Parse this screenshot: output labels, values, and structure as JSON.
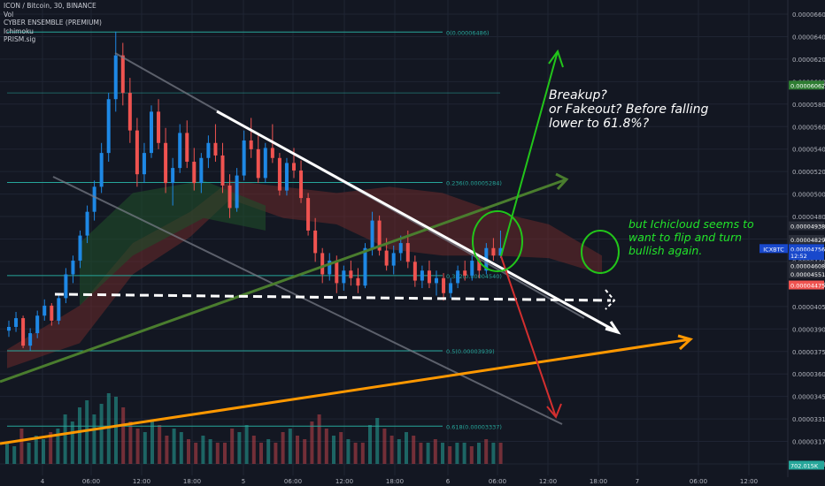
{
  "legend": {
    "symbol_line": "ICON / Bitcoin, 30, BINANCE",
    "indicators": [
      "Vol",
      "CYBER ENSEMBLE (PREMIUM)",
      "Ichimoku",
      "PRISM.sig"
    ]
  },
  "annotations": {
    "breakup_text": "Breakup?\nor Fakeout? Before falling\nlower to 61.8%?",
    "ichicloud_text": "but Ichicloud seems to want to flip and turn bullish again."
  },
  "colors": {
    "background": "#131722",
    "grid": "#1f2433",
    "candle_up": "#1e88e5",
    "candle_down": "#ef5350",
    "fib_line": "#26a69a",
    "white_trend": "#ffffff",
    "green_arrow": "#22c51a",
    "red_arrow": "#d32f2f",
    "orange_trend": "#ff9800",
    "olive_trend": "#4a7d2e",
    "gray_channel": "#7b7f8a",
    "cloud_red": "#6b2a2a",
    "cloud_green": "#1f4d2a"
  },
  "chart_data": {
    "type": "candlestick",
    "symbol": "ICXBTC",
    "x_tick_labels": [
      "4",
      "06:00",
      "12:00",
      "18:00",
      "5",
      "06:00",
      "12:00",
      "18:00",
      "6",
      "06:00",
      "12:00",
      "18:00",
      "7",
      "06:00",
      "12:00"
    ],
    "y_tick_labels": [
      "0.00006600",
      "0.00006400",
      "0.00006200",
      "0.00006000",
      "0.00005800",
      "0.00005600",
      "0.00005400",
      "0.00005200",
      "0.00005000",
      "0.00004800",
      "0.00004600",
      "0.00004400",
      "0.00004200",
      "0.00004050",
      "0.00003900",
      "0.00003750",
      "0.00003600",
      "0.00003450",
      "0.00003310",
      "0.00003170",
      "0.00003030"
    ],
    "price_badges": [
      {
        "label": "0.00006062",
        "value": 6.062e-05,
        "color": "#2e7d32"
      },
      {
        "label": "0.00004938",
        "value": 4.938e-05,
        "color": "#2a2e39"
      },
      {
        "label": "0.00004829",
        "value": 4.829e-05,
        "color": "#2a2e39"
      },
      {
        "label": "ICXBTC",
        "value": 4.756e-05,
        "color": "#1848cc"
      },
      {
        "label": "0.00004756",
        "value": 4.756e-05,
        "color": "#1848cc"
      },
      {
        "label": "12:52",
        "value": 4.7e-05,
        "color": "#1848cc"
      },
      {
        "label": "0.00004608",
        "value": 4.62e-05,
        "color": "#2a2e39"
      },
      {
        "label": "0.00004551",
        "value": 4.555e-05,
        "color": "#2a2e39"
      },
      {
        "label": "0.00004475",
        "value": 4.465e-05,
        "color": "#ef5350"
      },
      {
        "label": "702.015K",
        "value": 3.025e-05,
        "color": "#26a69a"
      }
    ],
    "fib_levels": [
      {
        "label": "0(0.00006486)",
        "value": 6.486e-05
      },
      {
        "label": "0.236(0.00005284)",
        "value": 5.284e-05
      },
      {
        "label": "0.382(0.00004540)",
        "value": 4.54e-05
      },
      {
        "label": "0.5(0.00003939)",
        "value": 3.939e-05
      },
      {
        "label": "0.618(0.00003337)",
        "value": 3.337e-05
      }
    ],
    "candles": [
      [
        4.1e-05,
        4.18e-05,
        4.05e-05,
        4.13e-05
      ],
      [
        4.13e-05,
        4.25e-05,
        4.09e-05,
        4.2e-05
      ],
      [
        4.2e-05,
        4.22e-05,
        3.96e-05,
        3.98e-05
      ],
      [
        3.98e-05,
        4.12e-05,
        3.94e-05,
        4.08e-05
      ],
      [
        4.08e-05,
        4.26e-05,
        4.04e-05,
        4.22e-05
      ],
      [
        4.22e-05,
        4.35e-05,
        4.18e-05,
        4.3e-05
      ],
      [
        4.3e-05,
        4.32e-05,
        4.14e-05,
        4.18e-05
      ],
      [
        4.18e-05,
        4.4e-05,
        4.15e-05,
        4.36e-05
      ],
      [
        4.36e-05,
        4.6e-05,
        4.32e-05,
        4.55e-05
      ],
      [
        4.55e-05,
        4.7e-05,
        4.48e-05,
        4.66e-05
      ],
      [
        4.66e-05,
        4.9e-05,
        4.6e-05,
        4.86e-05
      ],
      [
        4.86e-05,
        5.1e-05,
        4.8e-05,
        5.05e-05
      ],
      [
        5.05e-05,
        5.3e-05,
        4.98e-05,
        5.25e-05
      ],
      [
        5.25e-05,
        5.6e-05,
        5.2e-05,
        5.52e-05
      ],
      [
        5.52e-05,
        6e-05,
        5.45e-05,
        5.95e-05
      ],
      [
        5.95e-05,
        6.49e-05,
        5.85e-05,
        6.3e-05
      ],
      [
        6.3e-05,
        6.4e-05,
        5.9e-05,
        6e-05
      ],
      [
        6e-05,
        6.12e-05,
        5.6e-05,
        5.7e-05
      ],
      [
        5.7e-05,
        5.8e-05,
        5.25e-05,
        5.35e-05
      ],
      [
        5.35e-05,
        5.6e-05,
        5.28e-05,
        5.52e-05
      ],
      [
        5.52e-05,
        5.9e-05,
        5.48e-05,
        5.85e-05
      ],
      [
        5.85e-05,
        5.95e-05,
        5.55e-05,
        5.6e-05
      ],
      [
        5.6e-05,
        5.72e-05,
        5.2e-05,
        5.28e-05
      ],
      [
        5.28e-05,
        5.48e-05,
        5.1e-05,
        5.4e-05
      ],
      [
        5.4e-05,
        5.75e-05,
        5.36e-05,
        5.68e-05
      ],
      [
        5.68e-05,
        5.78e-05,
        5.4e-05,
        5.45e-05
      ],
      [
        5.45e-05,
        5.56e-05,
        5.22e-05,
        5.28e-05
      ],
      [
        5.28e-05,
        5.52e-05,
        5.2e-05,
        5.48e-05
      ],
      [
        5.48e-05,
        5.66e-05,
        5.4e-05,
        5.6e-05
      ],
      [
        5.6e-05,
        5.75e-05,
        5.45e-05,
        5.5e-05
      ],
      [
        5.5e-05,
        5.6e-05,
        5.2e-05,
        5.26e-05
      ],
      [
        5.26e-05,
        5.35e-05,
        5e-05,
        5.08e-05
      ],
      [
        5.08e-05,
        5.4e-05,
        5.05e-05,
        5.34e-05
      ],
      [
        5.34e-05,
        5.7e-05,
        5.3e-05,
        5.62e-05
      ],
      [
        5.62e-05,
        5.8e-05,
        5.48e-05,
        5.55e-05
      ],
      [
        5.55e-05,
        5.66e-05,
        5.28e-05,
        5.32e-05
      ],
      [
        5.32e-05,
        5.6e-05,
        5.28e-05,
        5.56e-05
      ],
      [
        5.56e-05,
        5.75e-05,
        5.44e-05,
        5.48e-05
      ],
      [
        5.48e-05,
        5.52e-05,
        5.18e-05,
        5.22e-05
      ],
      [
        5.22e-05,
        5.48e-05,
        5.18e-05,
        5.44e-05
      ],
      [
        5.44e-05,
        5.56e-05,
        5.32e-05,
        5.38e-05
      ],
      [
        5.38e-05,
        5.46e-05,
        5.12e-05,
        5.16e-05
      ],
      [
        5.16e-05,
        5.2e-05,
        4.86e-05,
        4.9e-05
      ],
      [
        4.9e-05,
        5e-05,
        4.65e-05,
        4.72e-05
      ],
      [
        4.72e-05,
        4.76e-05,
        4.48e-05,
        4.55e-05
      ],
      [
        4.55e-05,
        4.72e-05,
        4.5e-05,
        4.66e-05
      ],
      [
        4.66e-05,
        4.7e-05,
        4.4e-05,
        4.48e-05
      ],
      [
        4.48e-05,
        4.62e-05,
        4.42e-05,
        4.58e-05
      ],
      [
        4.58e-05,
        4.66e-05,
        4.46e-05,
        4.52e-05
      ],
      [
        4.52e-05,
        4.6e-05,
        4.4e-05,
        4.46e-05
      ],
      [
        4.46e-05,
        4.8e-05,
        4.44e-05,
        4.76e-05
      ],
      [
        4.76e-05,
        5.05e-05,
        4.7e-05,
        4.98e-05
      ],
      [
        4.98e-05,
        5.02e-05,
        4.7e-05,
        4.74e-05
      ],
      [
        4.74e-05,
        4.84e-05,
        4.58e-05,
        4.62e-05
      ],
      [
        4.62e-05,
        4.78e-05,
        4.55e-05,
        4.72e-05
      ],
      [
        4.72e-05,
        4.86e-05,
        4.66e-05,
        4.8e-05
      ],
      [
        4.8e-05,
        4.9e-05,
        4.6e-05,
        4.65e-05
      ],
      [
        4.65e-05,
        4.7e-05,
        4.45e-05,
        4.5e-05
      ],
      [
        4.5e-05,
        4.62e-05,
        4.44e-05,
        4.58e-05
      ],
      [
        4.58e-05,
        4.66e-05,
        4.44e-05,
        4.48e-05
      ],
      [
        4.48e-05,
        4.58e-05,
        4.38e-05,
        4.52e-05
      ],
      [
        4.52e-05,
        4.56e-05,
        4.34e-05,
        4.4e-05
      ],
      [
        4.4e-05,
        4.52e-05,
        4.36e-05,
        4.48e-05
      ],
      [
        4.48e-05,
        4.62e-05,
        4.44e-05,
        4.58e-05
      ],
      [
        4.58e-05,
        4.66e-05,
        4.5e-05,
        4.54e-05
      ],
      [
        4.54e-05,
        4.7e-05,
        4.5e-05,
        4.66e-05
      ],
      [
        4.66e-05,
        4.7e-05,
        4.52e-05,
        4.58e-05
      ],
      [
        4.58e-05,
        4.8e-05,
        4.55e-05,
        4.76e-05
      ],
      [
        4.76e-05,
        4.84e-05,
        4.66e-05,
        4.7e-05
      ],
      [
        4.7e-05,
        4.9e-05,
        4.68e-05,
        4.76e-05
      ]
    ],
    "volume_profile": [
      0.3,
      0.25,
      0.5,
      0.3,
      0.4,
      0.35,
      0.45,
      0.5,
      0.7,
      0.6,
      0.8,
      0.9,
      0.7,
      0.85,
      1.0,
      0.95,
      0.8,
      0.6,
      0.5,
      0.45,
      0.6,
      0.55,
      0.4,
      0.5,
      0.45,
      0.35,
      0.3,
      0.4,
      0.35,
      0.3,
      0.3,
      0.5,
      0.45,
      0.55,
      0.4,
      0.3,
      0.35,
      0.3,
      0.45,
      0.5,
      0.4,
      0.35,
      0.6,
      0.7,
      0.5,
      0.4,
      0.45,
      0.35,
      0.3,
      0.3,
      0.55,
      0.65,
      0.5,
      0.4,
      0.35,
      0.45,
      0.4,
      0.3,
      0.3,
      0.35,
      0.3,
      0.25,
      0.3,
      0.3,
      0.25,
      0.3,
      0.35,
      0.3,
      0.3
    ],
    "ylim": [
      3e-05,
      6.7e-05
    ]
  }
}
